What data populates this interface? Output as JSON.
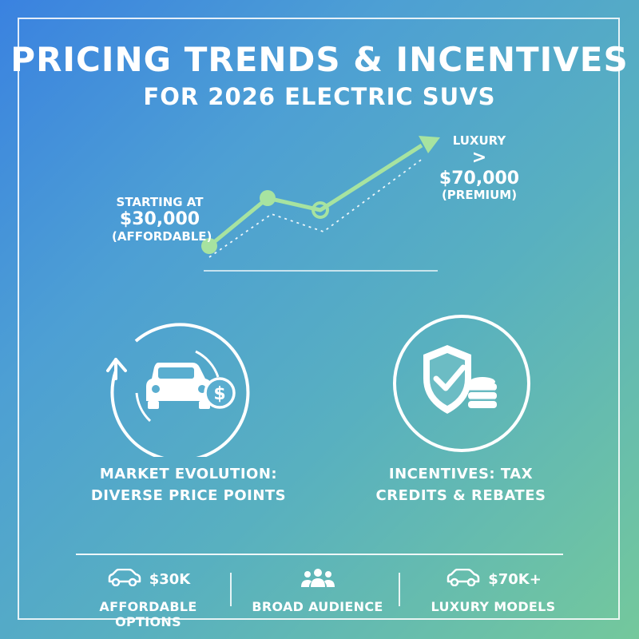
{
  "title": {
    "line1": "PRICING TRENDS & INCENTIVES",
    "line2": "FOR 2026 ELECTRIC SUVS"
  },
  "trend": {
    "start_label": "STARTING AT",
    "start_price": "$30,000",
    "start_note": "(AFFORDABLE)",
    "end_label": "LUXURY",
    "end_price": "> $70,000",
    "end_note": "(PREMIUM)"
  },
  "features": [
    {
      "icon": "car-price-cycle-icon",
      "text_line1": "MARKET EVOLUTION:",
      "text_line2": "DIVERSE PRICE POINTS"
    },
    {
      "icon": "shield-check-coins-icon",
      "text_line1": "INCENTIVES: TAX",
      "text_line2": "CREDITS & REBATES"
    }
  ],
  "bottom": [
    {
      "icon": "car-icon",
      "value": "$30K",
      "label": "AFFORDABLE OPTIONS"
    },
    {
      "icon": "people-icon",
      "value": "",
      "label": "BROAD AUDIENCE"
    },
    {
      "icon": "car-icon",
      "value": "$70K+",
      "label": "LUXURY MODELS"
    }
  ],
  "colors": {
    "accent_green": "#9ee09a",
    "line_white": "#ffffff"
  }
}
